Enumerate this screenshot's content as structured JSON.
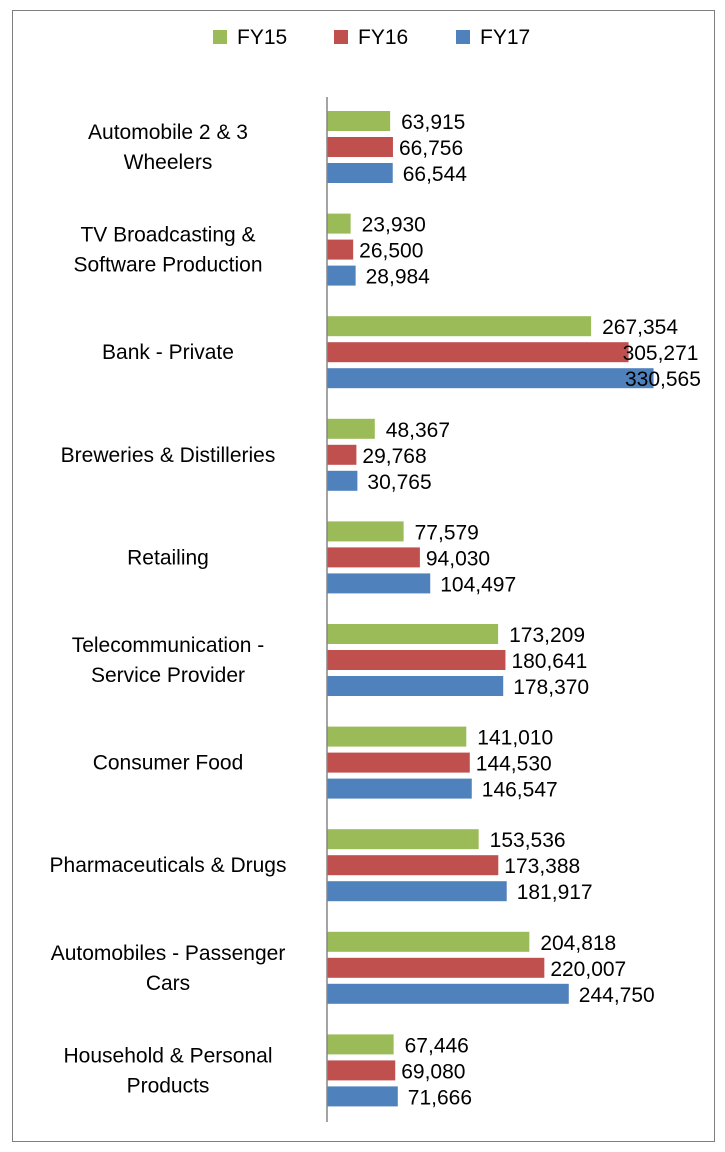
{
  "chart_data": {
    "type": "bar",
    "orientation": "horizontal",
    "title": "",
    "xlabel": "",
    "ylabel": "",
    "xlim": [
      0,
      330000
    ],
    "grid": false,
    "legend": {
      "placement": "top",
      "entries": [
        "FY15",
        "FY16",
        "FY17"
      ]
    },
    "categories": [
      {
        "lines": [
          "Automobile 2 & 3",
          "Wheelers"
        ]
      },
      {
        "lines": [
          "TV Broadcasting &",
          "Software Production"
        ]
      },
      {
        "lines": [
          "Bank - Private"
        ]
      },
      {
        "lines": [
          "Breweries & Distilleries"
        ]
      },
      {
        "lines": [
          "Retailing"
        ]
      },
      {
        "lines": [
          "Telecommunication -",
          "Service  Provider"
        ]
      },
      {
        "lines": [
          "Consumer Food"
        ]
      },
      {
        "lines": [
          "Pharmaceuticals & Drugs"
        ]
      },
      {
        "lines": [
          "Automobiles - Passenger",
          "Cars"
        ]
      },
      {
        "lines": [
          "Household & Personal",
          "Products"
        ]
      }
    ],
    "series": [
      {
        "name": "FY15",
        "color": "#9bbb59",
        "values": [
          63915,
          23930,
          267354,
          48367,
          77579,
          173209,
          141010,
          153536,
          204818,
          67446
        ],
        "labels": [
          "63,915",
          "23,930",
          "267,354",
          "48,367",
          "77,579",
          "173,209",
          "141,010",
          "153,536",
          "204,818",
          "67,446"
        ]
      },
      {
        "name": "FY16",
        "color": "#c0504d",
        "values": [
          66756,
          26500,
          305271,
          29768,
          94030,
          180641,
          144530,
          173388,
          220007,
          69080
        ],
        "labels": [
          "66,756",
          "26,500",
          "305,271",
          "29,768",
          "94,030",
          "180,641",
          "144,530",
          "173,388",
          "220,007",
          "69,080"
        ]
      },
      {
        "name": "FY17",
        "color": "#4f81bd",
        "values": [
          66544,
          28984,
          330565,
          30765,
          104497,
          178370,
          146547,
          181917,
          244750,
          71666
        ],
        "labels": [
          "66,544",
          "28,984",
          "330,565",
          "30,765",
          "104,497",
          "178,370",
          "146,547",
          "181,917",
          "244,750",
          "71,666"
        ]
      }
    ]
  }
}
